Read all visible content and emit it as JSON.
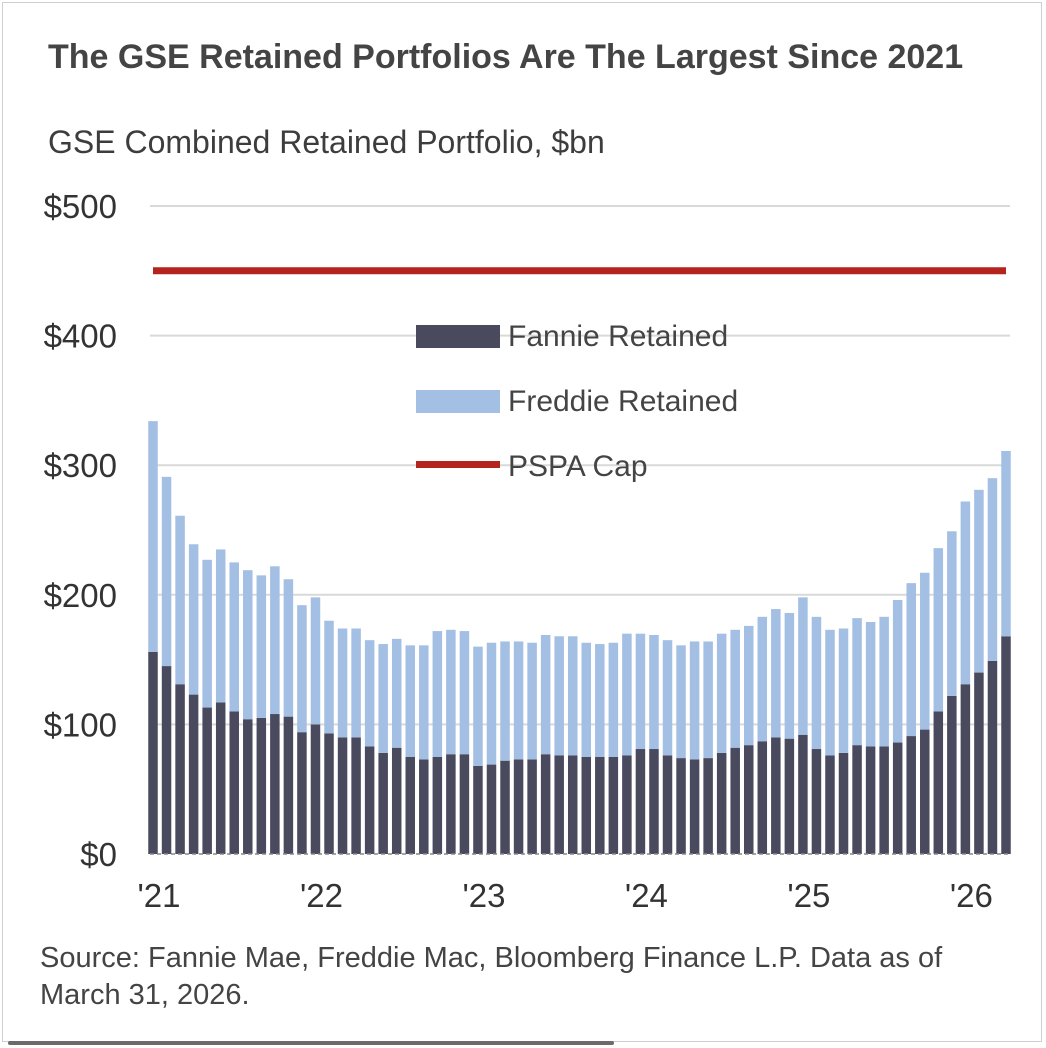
{
  "title": "The GSE Retained Portfolios Are The Largest Since 2021",
  "subtitle": "GSE Combined Retained Portfolio, $bn",
  "source": "Source: Fannie Mae, Freddie Mac, Bloomberg Finance L.P. Data as of March 31, 2026.",
  "colors": {
    "fannie": "#4a4a5e",
    "freddie": "#a3bfe3",
    "cap": "#b5231f",
    "grid": "#d9d9d9"
  },
  "chart_data": {
    "type": "bar",
    "stacked": true,
    "ylim": [
      0,
      500
    ],
    "y_tick_labels": [
      "$0",
      "$100",
      "$200",
      "$300",
      "$400",
      "$500"
    ],
    "y_tick_values": [
      0,
      100,
      200,
      300,
      400,
      500
    ],
    "x_tick_labels": [
      "'21",
      "'22",
      "'23",
      "'24",
      "'25",
      "'26"
    ],
    "legend_position": "center",
    "grid": true,
    "series": [
      {
        "name": "Fannie Retained",
        "kind": "bar",
        "values": [
          156,
          145,
          131,
          123,
          113,
          117,
          110,
          104,
          105,
          108,
          106,
          94,
          100,
          93,
          90,
          90,
          83,
          78,
          82,
          75,
          73,
          75,
          77,
          77,
          68,
          69,
          72,
          73,
          73,
          77,
          76,
          76,
          75,
          75,
          75,
          76,
          81,
          81,
          76,
          74,
          73,
          74,
          78,
          82,
          84,
          87,
          90,
          89,
          92,
          81,
          76,
          78,
          84,
          83,
          83,
          86,
          91,
          96,
          110,
          122,
          131,
          140,
          149,
          168
        ]
      },
      {
        "name": "Freddie Retained",
        "kind": "bar",
        "values": [
          178,
          146,
          130,
          116,
          114,
          118,
          115,
          115,
          110,
          114,
          106,
          98,
          98,
          87,
          84,
          84,
          82,
          84,
          84,
          86,
          88,
          97,
          96,
          95,
          92,
          94,
          92,
          91,
          90,
          92,
          92,
          92,
          88,
          87,
          88,
          94,
          89,
          88,
          89,
          87,
          91,
          90,
          92,
          91,
          92,
          96,
          99,
          97,
          106,
          102,
          97,
          96,
          98,
          96,
          100,
          110,
          118,
          121,
          126,
          127,
          141,
          141,
          141,
          143
        ]
      },
      {
        "name": "PSPA Cap",
        "kind": "line",
        "value": 450
      }
    ]
  }
}
